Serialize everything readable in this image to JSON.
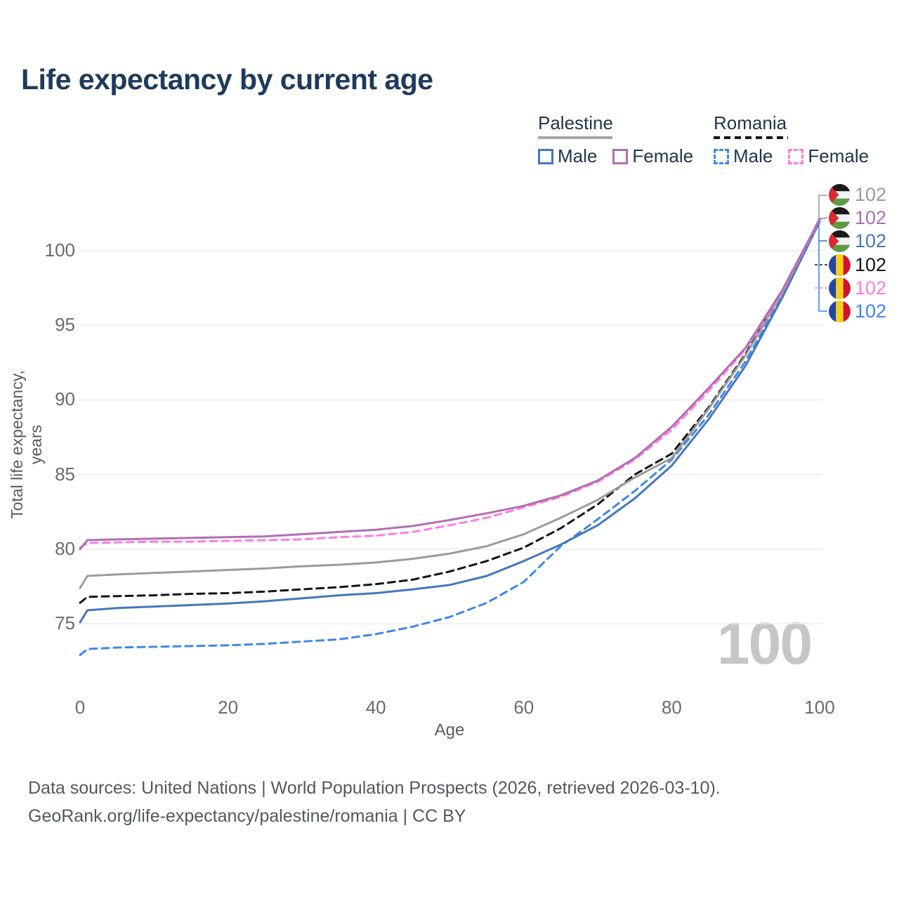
{
  "title": "Life expectancy by current age",
  "watermark": "100",
  "legend": {
    "groups": [
      {
        "country": "Palestine",
        "line_color": "#a6a6a6",
        "dashed": false,
        "items": [
          {
            "label": "Male",
            "color": "#4577bd",
            "dashed": false
          },
          {
            "label": "Female",
            "color": "#b06fb0",
            "dashed": false
          }
        ]
      },
      {
        "country": "Romania",
        "line_color": "#141414",
        "dashed": true,
        "items": [
          {
            "label": "Male",
            "color": "#3f86f0",
            "dashed": true
          },
          {
            "label": "Female",
            "color": "#ff7ce5",
            "dashed": true
          }
        ]
      }
    ]
  },
  "chart_data": {
    "type": "line",
    "title": "Life expectancy by current age",
    "xlabel": "Age",
    "ylabel": "Total life expectancy, years",
    "xlim": [
      0,
      100
    ],
    "ylim": [
      72,
      103
    ],
    "x_ticks": [
      0,
      20,
      40,
      60,
      80,
      100
    ],
    "y_ticks": [
      75,
      80,
      85,
      90,
      95,
      100
    ],
    "grid": true,
    "legend_position": "top-right",
    "x": [
      0,
      1,
      5,
      10,
      15,
      20,
      25,
      30,
      35,
      40,
      45,
      50,
      55,
      60,
      65,
      70,
      75,
      80,
      85,
      90,
      95,
      100
    ],
    "series": [
      {
        "id": "palestine-total",
        "name": "Palestine (both sexes)",
        "country": "Palestine",
        "flag": "palestine",
        "color": "#9b9b9b",
        "dashed": false,
        "end_label": "102",
        "label_color": "#9b9b9b",
        "values": [
          77.4,
          78.2,
          78.3,
          78.4,
          78.5,
          78.6,
          78.7,
          78.85,
          78.95,
          79.1,
          79.35,
          79.7,
          80.2,
          81.0,
          82.1,
          83.3,
          84.8,
          86.1,
          89.4,
          93.0,
          97.2,
          102.15
        ]
      },
      {
        "id": "palestine-female",
        "name": "Palestine Female",
        "country": "Palestine",
        "flag": "palestine",
        "color": "#b06fb0",
        "dashed": false,
        "end_label": "102",
        "label_color": "#a96fa9",
        "values": [
          80.0,
          80.6,
          80.65,
          80.7,
          80.75,
          80.8,
          80.85,
          81.0,
          81.15,
          81.3,
          81.55,
          81.95,
          82.4,
          82.9,
          83.6,
          84.6,
          86.1,
          88.2,
          90.8,
          93.5,
          97.4,
          102.1
        ]
      },
      {
        "id": "palestine-male",
        "name": "Palestine Male",
        "country": "Palestine",
        "flag": "palestine",
        "color": "#4577bd",
        "dashed": false,
        "end_label": "102",
        "label_color": "#4577bd",
        "values": [
          75.1,
          75.9,
          76.05,
          76.15,
          76.25,
          76.35,
          76.5,
          76.7,
          76.9,
          77.05,
          77.3,
          77.6,
          78.2,
          79.2,
          80.3,
          81.6,
          83.4,
          85.6,
          88.7,
          92.3,
          96.9,
          101.95
        ]
      },
      {
        "id": "romania-total",
        "name": "Romania (both sexes)",
        "country": "Romania",
        "flag": "romania",
        "color": "#141414",
        "dashed": true,
        "end_label": "102",
        "label_color": "#141414",
        "values": [
          76.4,
          76.8,
          76.85,
          76.9,
          77.0,
          77.05,
          77.15,
          77.3,
          77.45,
          77.65,
          77.95,
          78.5,
          79.2,
          80.1,
          81.4,
          83.0,
          85.0,
          86.4,
          89.5,
          93.1,
          97.3,
          102.1
        ]
      },
      {
        "id": "romania-female",
        "name": "Romania Female",
        "country": "Romania",
        "flag": "romania",
        "color": "#ff7ce5",
        "dashed": true,
        "end_label": "102",
        "label_color": "#ff7ce5",
        "values": [
          80.1,
          80.4,
          80.45,
          80.5,
          80.5,
          80.55,
          80.6,
          80.65,
          80.8,
          80.9,
          81.15,
          81.6,
          82.1,
          82.8,
          83.5,
          84.5,
          86.0,
          88.0,
          90.6,
          93.4,
          97.3,
          102.05
        ]
      },
      {
        "id": "romania-male",
        "name": "Romania Male",
        "country": "Romania",
        "flag": "romania",
        "color": "#3f86f0",
        "dashed": true,
        "end_label": "102",
        "label_color": "#3f86f0",
        "values": [
          72.9,
          73.3,
          73.4,
          73.45,
          73.5,
          73.55,
          73.65,
          73.8,
          73.95,
          74.3,
          74.8,
          75.45,
          76.4,
          77.8,
          80.2,
          82.0,
          83.9,
          86.0,
          89.0,
          92.6,
          97.0,
          102.0
        ]
      }
    ],
    "flag_colors": {
      "palestine": {
        "black": "#1a1a1a",
        "white": "#f2f2f2",
        "green": "#5d9c45",
        "red": "#d92a32"
      },
      "romania": {
        "blue": "#2346a0",
        "yellow": "#f8cf1c",
        "red": "#d2122e"
      }
    }
  },
  "footer": {
    "line1": "Data sources: United Nations | World Population Prospects (2026, retrieved 2026-03-10).",
    "line2": "GeoRank.org/life-expectancy/palestine/romania | CC BY"
  }
}
